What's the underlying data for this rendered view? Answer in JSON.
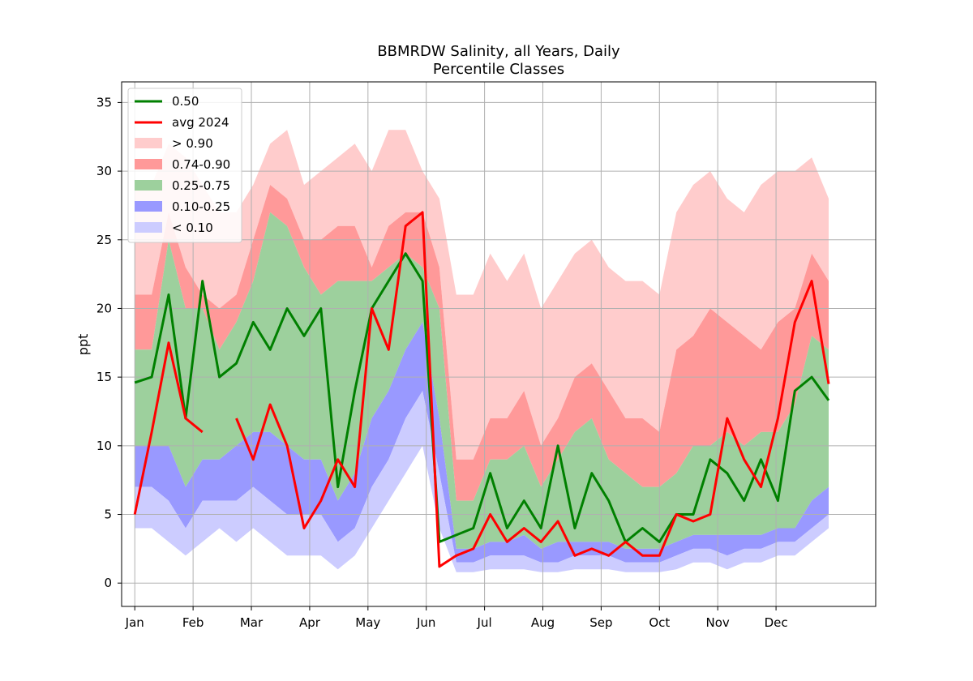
{
  "chart_data": {
    "type": "area",
    "title": "BBMRDW Salinity, all Years, Daily",
    "subtitle": "Percentile Classes",
    "ylabel": "ppt",
    "xlabel": "",
    "x_unit": "day of year",
    "xlim": [
      -6,
      395
    ],
    "ylim": [
      -1.7,
      36.5
    ],
    "grid": true,
    "legend_position": "top-left",
    "x_ticks": [
      {
        "label": "Jan",
        "day": 1
      },
      {
        "label": "Feb",
        "day": 32
      },
      {
        "label": "Mar",
        "day": 63
      },
      {
        "label": "Apr",
        "day": 94
      },
      {
        "label": "May",
        "day": 125
      },
      {
        "label": "Jun",
        "day": 156
      },
      {
        "label": "Jul",
        "day": 187
      },
      {
        "label": "Aug",
        "day": 218
      },
      {
        "label": "Sep",
        "day": 249
      },
      {
        "label": "Oct",
        "day": 280
      },
      {
        "label": "Nov",
        "day": 311
      },
      {
        "label": "Dec",
        "day": 342
      }
    ],
    "y_ticks": [
      0,
      5,
      10,
      15,
      20,
      25,
      30,
      35
    ],
    "colors": {
      "above_90": "#ffcccc",
      "p74_90": "#ff9999",
      "p25_75": "#9dd09d",
      "p10_25": "#9999ff",
      "below_10": "#ccccff",
      "median": "#008000",
      "avg_2024": "#ff0000"
    },
    "legend": [
      {
        "label": "0.50",
        "kind": "line",
        "color": "#008000"
      },
      {
        "label": "avg 2024",
        "kind": "line",
        "color": "#ff0000"
      },
      {
        "label": "> 0.90",
        "kind": "patch",
        "color": "#ffcccc"
      },
      {
        "label": "0.74-0.90",
        "kind": "patch",
        "color": "#ff9999"
      },
      {
        "label": "0.25-0.75",
        "kind": "patch",
        "color": "#9dd09d"
      },
      {
        "label": "0.10-0.25",
        "kind": "patch",
        "color": "#9999ff"
      },
      {
        "label": "< 0.10",
        "kind": "patch",
        "color": "#ccccff"
      }
    ],
    "x": [
      1,
      10,
      19,
      28,
      37,
      46,
      55,
      64,
      73,
      82,
      91,
      100,
      109,
      118,
      127,
      136,
      145,
      154,
      163,
      172,
      181,
      190,
      199,
      208,
      217,
      226,
      235,
      244,
      253,
      262,
      271,
      280,
      289,
      298,
      307,
      316,
      325,
      334,
      343,
      352,
      361,
      370
    ],
    "series": [
      {
        "name": "> 0.90",
        "type": "band",
        "lower": "p90",
        "values": [
          29,
          29,
          32,
          31,
          29,
          27,
          27,
          29,
          32,
          33,
          29,
          30,
          31,
          32,
          30,
          33,
          33,
          30,
          28,
          21,
          21,
          24,
          22,
          24,
          20,
          22,
          24,
          25,
          23,
          22,
          22,
          21,
          27,
          29,
          30,
          28,
          27,
          29,
          30,
          30,
          31,
          28
        ]
      },
      {
        "name": "0.74-0.90",
        "type": "band",
        "lower": "p75",
        "values": [
          21,
          21,
          27,
          23,
          21,
          20,
          21,
          25,
          29,
          28,
          25,
          25,
          26,
          26,
          23,
          26,
          27,
          27,
          23,
          9,
          9,
          12,
          12,
          14,
          10,
          12,
          15,
          16,
          14,
          12,
          12,
          11,
          17,
          18,
          20,
          19,
          18,
          17,
          19,
          20,
          24,
          22
        ]
      },
      {
        "name": "0.25-0.75",
        "type": "band",
        "lower": "p25",
        "values": [
          17,
          17,
          25,
          20,
          20,
          17,
          19,
          22,
          27,
          26,
          23,
          21,
          22,
          22,
          22,
          23,
          24,
          23,
          20,
          6,
          6,
          9,
          9,
          10,
          7,
          9,
          11,
          12,
          9,
          8,
          7,
          7,
          8,
          10,
          10,
          11,
          10,
          11,
          11,
          13,
          18,
          17
        ]
      },
      {
        "name": "0.10-0.25",
        "type": "band",
        "lower": "p10",
        "values": [
          10,
          10,
          10,
          7,
          9,
          9,
          10,
          11,
          11,
          10,
          9,
          9,
          6,
          8,
          12,
          14,
          17,
          19,
          12,
          2.5,
          2.5,
          3,
          3,
          3.5,
          2.5,
          3,
          3,
          3,
          3,
          2.5,
          2.5,
          2.5,
          3,
          3.5,
          3.5,
          3.5,
          3.5,
          3.5,
          4,
          4,
          6,
          7
        ]
      },
      {
        "name": "< 0.10",
        "type": "band",
        "lower": "p00",
        "values": [
          7,
          7,
          6,
          4,
          6,
          6,
          6,
          7,
          6,
          5,
          5,
          5,
          3,
          4,
          7,
          9,
          12,
          14,
          8,
          1.5,
          1.5,
          2,
          2,
          2,
          1.5,
          1.5,
          2,
          2,
          2,
          1.5,
          1.5,
          1.5,
          2,
          2.5,
          2.5,
          2,
          2.5,
          2.5,
          3,
          3,
          4,
          5
        ]
      },
      {
        "name": "bottom",
        "type": "band_edge",
        "values": [
          4,
          4,
          3,
          2,
          3,
          4,
          3,
          4,
          3,
          2,
          2,
          2,
          1,
          2,
          4,
          6,
          8,
          10,
          4,
          0.8,
          0.8,
          1,
          1,
          1,
          0.8,
          0.8,
          1,
          1,
          1,
          0.8,
          0.8,
          0.8,
          1,
          1.5,
          1.5,
          1,
          1.5,
          1.5,
          2,
          2,
          3,
          4
        ]
      },
      {
        "name": "0.50",
        "type": "line",
        "values": [
          14.6,
          15,
          21,
          12,
          22,
          15,
          16,
          19,
          17,
          20,
          18,
          20,
          7,
          14,
          20,
          22,
          24,
          22,
          3,
          3.5,
          4,
          8,
          4,
          6,
          4,
          10,
          4,
          8,
          6,
          3,
          4,
          3,
          5,
          5,
          9,
          8,
          6,
          9,
          6,
          14,
          15,
          13.3
        ]
      },
      {
        "name": "avg 2024",
        "type": "line",
        "values": [
          5,
          11,
          17.5,
          12,
          11,
          null,
          12,
          9,
          13,
          10,
          4,
          6,
          9,
          7,
          20,
          17,
          26,
          27,
          1.2,
          2,
          2.5,
          5,
          3,
          4,
          3,
          4.5,
          2,
          2.5,
          2,
          3,
          2,
          2,
          5,
          4.5,
          5,
          12,
          9,
          7,
          12,
          19,
          22,
          14.5
        ]
      }
    ]
  }
}
